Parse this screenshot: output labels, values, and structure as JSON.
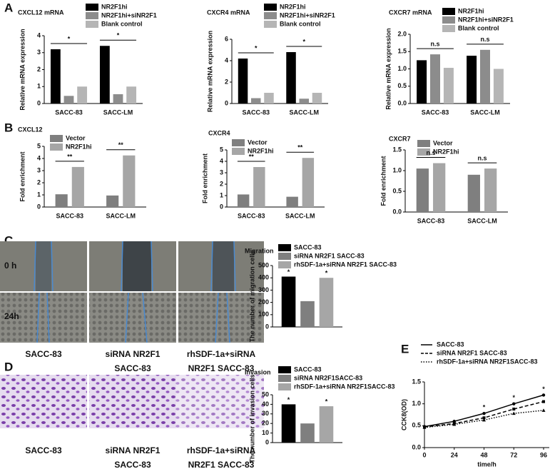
{
  "panels": [
    "A",
    "B",
    "C",
    "D",
    "E"
  ],
  "panel_c": {
    "rows": [
      "0 h",
      "24h"
    ],
    "captions": [
      [
        "SACC-83"
      ],
      [
        "siRNA NR2F1",
        "SACC-83"
      ],
      [
        "rhSDF-1a+siRNA",
        "NR2F1 SACC-83"
      ]
    ]
  },
  "panel_d": {
    "captions": [
      [
        "SACC-83"
      ],
      [
        "siRNA NR2F1",
        "SACC-83"
      ],
      [
        "rhSDF-1a+siRNA",
        "NR2F1 SACC-83"
      ]
    ]
  },
  "chart_data": [
    {
      "type": "bar",
      "title": "CXCL12 mRNA",
      "y_label": "Relative mRNA expression",
      "categories": [
        "SACC-83",
        "SACC-LM"
      ],
      "series": [
        {
          "name": "NR2F1hi",
          "color": "#000000",
          "values": [
            3.2,
            3.4
          ]
        },
        {
          "name": "NR2F1hi+siNR2F1",
          "color": "#8c8c8c",
          "values": [
            0.45,
            0.55
          ]
        },
        {
          "name": "Blank control",
          "color": "#b5b5b5",
          "values": [
            1.0,
            1.0
          ]
        }
      ],
      "significance": [
        "*",
        "*"
      ],
      "ylim": [
        0,
        4
      ],
      "yticks": [
        0,
        1,
        2,
        3,
        4
      ]
    },
    {
      "type": "bar",
      "title": "CXCR4 mRNA",
      "y_label": "Relative mRNA expression",
      "categories": [
        "SACC-83",
        "SACC-LM"
      ],
      "series": [
        {
          "name": "NR2F1hi",
          "color": "#000000",
          "values": [
            4.2,
            4.8
          ]
        },
        {
          "name": "NR2F1hi+siNR2F1",
          "color": "#8c8c8c",
          "values": [
            0.5,
            0.45
          ]
        },
        {
          "name": "Blank control",
          "color": "#b5b5b5",
          "values": [
            1.0,
            1.0
          ]
        }
      ],
      "significance": [
        "*",
        "*"
      ],
      "ylim": [
        0,
        6
      ],
      "yticks": [
        0,
        2,
        4,
        6
      ]
    },
    {
      "type": "bar",
      "title": "CXCR7 mRNA",
      "y_label": "Relative mRNA expression",
      "categories": [
        "SACC-83",
        "SACC-LM"
      ],
      "series": [
        {
          "name": "NR2F1hi",
          "color": "#000000",
          "values": [
            1.25,
            1.38
          ]
        },
        {
          "name": "NR2F1hi+siNR2F1",
          "color": "#8c8c8c",
          "values": [
            1.42,
            1.55
          ]
        },
        {
          "name": "Blank control",
          "color": "#b5b5b5",
          "values": [
            1.03,
            1.0
          ]
        }
      ],
      "significance": [
        "n.s",
        "n.s"
      ],
      "ylim": [
        0,
        2
      ],
      "yticks": [
        {
          "value": 0,
          "label": "0.0"
        },
        {
          "value": 0.5,
          "label": "0.5"
        },
        {
          "value": 1,
          "label": "1.0"
        },
        {
          "value": 1.5,
          "label": "1.5"
        },
        {
          "value": 2,
          "label": "2.0"
        }
      ]
    },
    {
      "type": "bar",
      "title": "CXCL12",
      "y_label": "Fold enrichment",
      "categories": [
        "SACC-83",
        "SACC-LM"
      ],
      "series": [
        {
          "name": "Vector",
          "color": "#7f7f7f",
          "values": [
            1.05,
            0.95
          ]
        },
        {
          "name": "NR2F1hi",
          "color": "#a6a6a6",
          "values": [
            3.3,
            4.25
          ]
        }
      ],
      "significance": [
        "**",
        "**"
      ],
      "ylim": [
        0,
        5
      ],
      "yticks": [
        0,
        1,
        2,
        3,
        4,
        5
      ]
    },
    {
      "type": "bar",
      "title": "CXCR4",
      "y_label": "Fold enrichment",
      "categories": [
        "SACC-83",
        "SACC-LM"
      ],
      "series": [
        {
          "name": "Vector",
          "color": "#7f7f7f",
          "values": [
            1.1,
            0.9
          ]
        },
        {
          "name": "NR2F1hi",
          "color": "#a6a6a6",
          "values": [
            3.5,
            4.3
          ]
        }
      ],
      "significance": [
        "**",
        "**"
      ],
      "ylim": [
        0,
        5
      ],
      "yticks": [
        0,
        1,
        2,
        3,
        4,
        5
      ]
    },
    {
      "type": "bar",
      "title": "CXCR7",
      "y_label": "Fold enrichment",
      "categories": [
        "SACC-83",
        "SACC-LM"
      ],
      "series": [
        {
          "name": "Vector",
          "color": "#7f7f7f",
          "values": [
            1.05,
            0.9
          ]
        },
        {
          "name": "NR2F1hi",
          "color": "#a6a6a6",
          "values": [
            1.18,
            1.05
          ]
        }
      ],
      "significance": [
        "n.s",
        "n.s"
      ],
      "ylim": [
        0,
        1.5
      ],
      "yticks": [
        {
          "value": 0,
          "label": "0.0"
        },
        {
          "value": 0.5,
          "label": "0.5"
        },
        {
          "value": 1,
          "label": "1.0"
        },
        {
          "value": 1.5,
          "label": "1.5"
        }
      ]
    },
    {
      "type": "bar",
      "title": "Migration",
      "y_label": "The number of migration cells",
      "categories": [
        null
      ],
      "series": [
        {
          "name": "SACC-83",
          "color": "#000000",
          "values": [
            410
          ],
          "significance": [
            "*"
          ]
        },
        {
          "name": "siRNA NR2F1 SACC-83",
          "color": "#7f7f7f",
          "values": [
            210
          ]
        },
        {
          "name": "rhSDF-1a+siRNA NR2F1 SACC-83",
          "color": "#a6a6a6",
          "values": [
            400
          ],
          "significance": [
            "*"
          ]
        }
      ],
      "ylim": [
        0,
        500
      ],
      "yticks": [
        0,
        100,
        200,
        300,
        400,
        500
      ]
    },
    {
      "type": "bar",
      "title": "Invasion",
      "y_label": "The number of invasion cells",
      "categories": [
        null
      ],
      "series": [
        {
          "name": "SACC-83",
          "color": "#000000",
          "values": [
            40
          ],
          "significance": [
            "*"
          ]
        },
        {
          "name": "siRNA NR2F1SACC-83",
          "color": "#7f7f7f",
          "values": [
            20
          ]
        },
        {
          "name": "rhSDF-1a+siRNA NR2F1SACC-83",
          "color": "#a6a6a6",
          "values": [
            38
          ],
          "significance": [
            "*"
          ]
        }
      ],
      "ylim": [
        0,
        50
      ],
      "yticks": [
        0,
        10,
        20,
        30,
        40,
        50
      ]
    },
    {
      "type": "line",
      "x_label": "time/h",
      "y_label": "CCK8(OD)",
      "x": [
        0,
        24,
        48,
        72,
        96
      ],
      "series": [
        {
          "name": "SACC-83",
          "color": "#000000",
          "dash": "solid",
          "marker": "circle",
          "values": [
            0.48,
            0.6,
            0.78,
            1.0,
            1.2
          ]
        },
        {
          "name": "siRNA NR2F1 SACC-83",
          "color": "#000000",
          "dash": "dashed",
          "marker": "square",
          "values": [
            0.47,
            0.55,
            0.68,
            0.88,
            1.05
          ]
        },
        {
          "name": "rhSDF-1a+siRNA NR2F1SACC-83",
          "color": "#000000",
          "dash": "dotted",
          "marker": "triangle",
          "values": [
            0.46,
            0.53,
            0.63,
            0.78,
            0.85
          ]
        }
      ],
      "significance": [
        null,
        null,
        "*",
        "*",
        "*"
      ],
      "xlim": [
        0,
        96
      ],
      "xticks": [
        0,
        24,
        48,
        72,
        96
      ],
      "ylim": [
        0,
        1.5
      ],
      "yticks": [
        {
          "value": 0,
          "label": "0.0"
        },
        {
          "value": 0.5,
          "label": "0.5"
        },
        {
          "value": 1,
          "label": "1.0"
        },
        {
          "value": 1.5,
          "label": "1.5"
        }
      ]
    }
  ]
}
